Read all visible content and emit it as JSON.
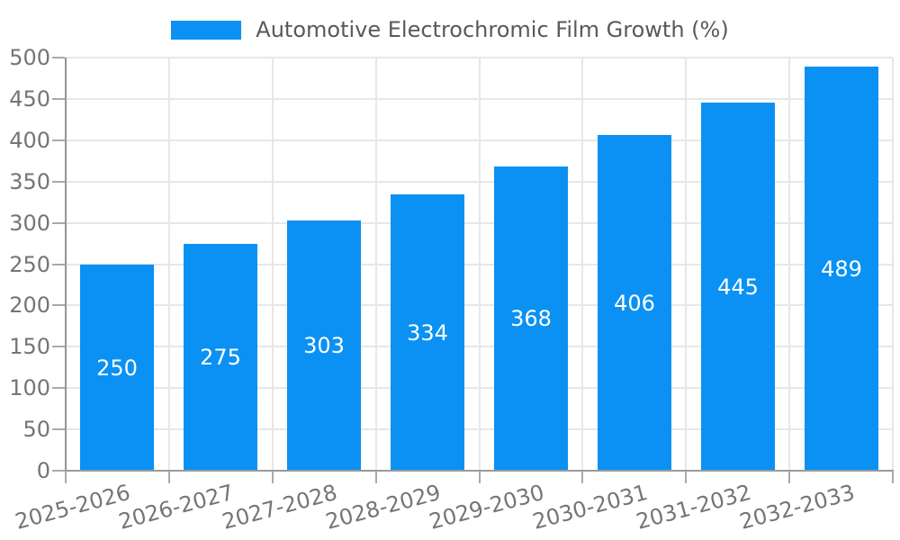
{
  "legend": {
    "label": "Automotive Electrochromic Film Growth (%)"
  },
  "chart_data": {
    "type": "bar",
    "title": "Automotive Electrochromic Film Growth (%)",
    "categories": [
      "2025-2026",
      "2026-2027",
      "2027-2028",
      "2028-2029",
      "2029-2030",
      "2030-2031",
      "2031-2032",
      "2032-2033"
    ],
    "values": [
      250,
      275,
      303,
      334,
      368,
      406,
      445,
      489
    ],
    "xlabel": "",
    "ylabel": "",
    "ylim": [
      0,
      500
    ],
    "ytick_step": 50,
    "grid": true,
    "legend_position": "top-center",
    "bar_color": "#0b91f3",
    "value_label_color": "#ffffff",
    "axis_text_color": "#757575",
    "grid_color": "#e7e7e7",
    "axis_line_color": "#9a9a9a"
  }
}
